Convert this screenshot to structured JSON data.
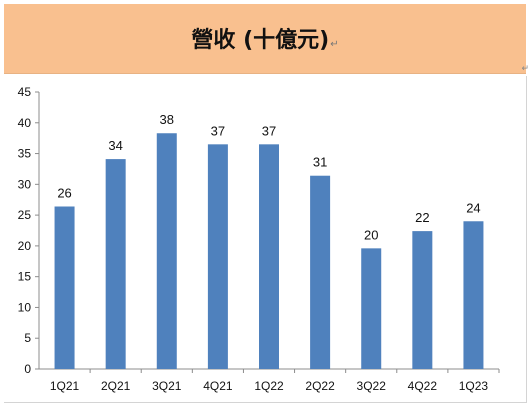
{
  "header": {
    "title": "營收 (十億元)",
    "title_mark": "↵",
    "edge_mark": "↵",
    "banner_color": "#f9c08f"
  },
  "chart_data": {
    "type": "bar",
    "title": "營收 (十億元)",
    "categories": [
      "1Q21",
      "2Q21",
      "3Q21",
      "4Q21",
      "1Q22",
      "2Q22",
      "3Q22",
      "4Q22",
      "1Q23"
    ],
    "values": [
      26.4,
      34.1,
      38.3,
      36.5,
      36.5,
      31.4,
      19.6,
      22.4,
      24.0
    ],
    "data_labels": [
      "26",
      "34",
      "38",
      "37",
      "37",
      "31",
      "20",
      "22",
      "24"
    ],
    "ylim": [
      0,
      45
    ],
    "yticks": [
      0,
      5,
      10,
      15,
      20,
      25,
      30,
      35,
      40,
      45
    ],
    "xlabel": "",
    "ylabel": "",
    "grid": false,
    "bar_color": "#4f81bd"
  }
}
